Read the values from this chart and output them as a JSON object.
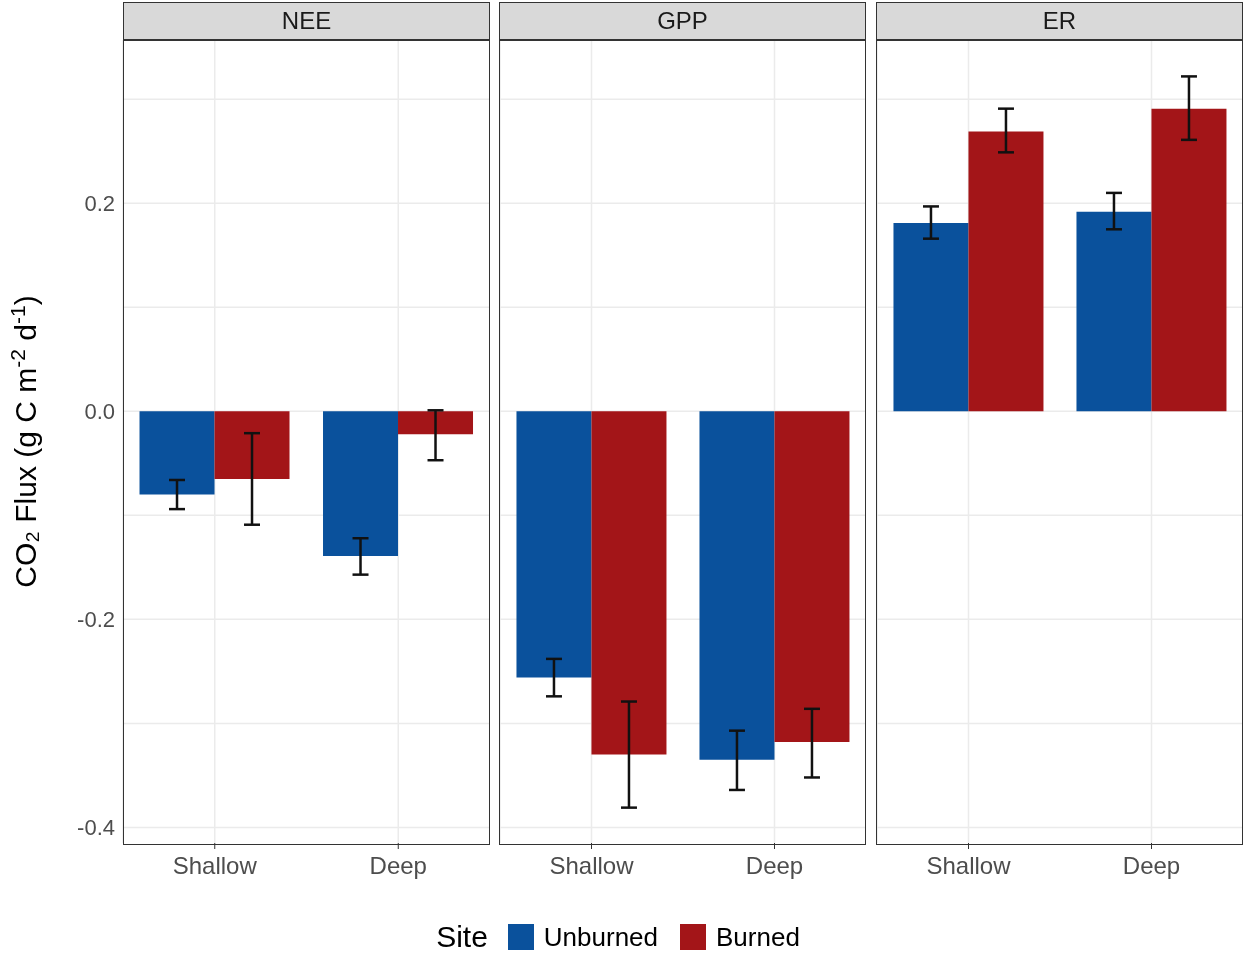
{
  "chart_data": [
    {
      "type": "bar",
      "title": "NEE",
      "ylabel": "CO₂ Flux (g C m$^{-2}$ d$^{-1}$)",
      "categories": [
        "Shallow",
        "Deep"
      ],
      "series": [
        {
          "name": "Unburned",
          "color": "#0a519c",
          "values": [
            -0.08,
            -0.139
          ],
          "errors": [
            [
              -0.094,
              -0.066
            ],
            [
              -0.157,
              -0.122
            ]
          ]
        },
        {
          "name": "Burned",
          "color": "#a31518",
          "values": [
            -0.065,
            -0.022
          ],
          "errors": [
            [
              -0.109,
              -0.021
            ],
            [
              -0.047,
              0.001
            ]
          ]
        }
      ],
      "ylim": [
        -0.415,
        0.357
      ],
      "yticks": [
        {
          "value": -0.4,
          "label": "-0.4"
        },
        {
          "value": -0.3,
          "label": null
        },
        {
          "value": -0.2,
          "label": "-0.2"
        },
        {
          "value": -0.1,
          "label": null
        },
        {
          "value": 0,
          "label": "0.0"
        },
        {
          "value": 0.1,
          "label": null
        },
        {
          "value": 0.2,
          "label": "0.2"
        },
        {
          "value": 0.3,
          "label": null
        }
      ],
      "grid": true,
      "legend": "bottom",
      "legend_title": "Site"
    },
    {
      "type": "bar",
      "title": "GPP",
      "categories": [
        "Shallow",
        "Deep"
      ],
      "series": [
        {
          "color": "#0a519c",
          "values": [
            -0.256,
            -0.335
          ],
          "errors": [
            [
              -0.274,
              -0.238
            ],
            [
              -0.364,
              -0.307
            ]
          ]
        },
        {
          "color": "#a31518",
          "values": [
            -0.33,
            -0.318
          ],
          "errors": [
            [
              -0.381,
              -0.279
            ],
            [
              -0.352,
              -0.286
            ]
          ]
        }
      ],
      "ylim": [
        -0.415,
        0.357
      ],
      "yticks": [
        -0.4,
        -0.3,
        -0.2,
        -0.1,
        0,
        0.1,
        0.2,
        0.3
      ],
      "grid": true,
      "tick_labels": "x"
    },
    {
      "type": "bar",
      "title": "ER",
      "categories": [
        "Shallow",
        "Deep"
      ],
      "series": [
        {
          "color": "#0a519c",
          "values": [
            0.181,
            0.192
          ],
          "errors": [
            [
              0.166,
              0.197
            ],
            [
              0.175,
              0.21
            ]
          ]
        },
        {
          "color": "#a31518",
          "values": [
            0.269,
            0.291
          ],
          "errors": [
            [
              0.249,
              0.291
            ],
            [
              0.261,
              0.322
            ]
          ]
        }
      ],
      "ylim": [
        -0.415,
        0.357
      ],
      "yticks": [
        -0.4,
        -0.3,
        -0.2,
        -0.1,
        0,
        0.1,
        0.2,
        0.3
      ],
      "grid": true,
      "tick_labels": "x"
    }
  ]
}
